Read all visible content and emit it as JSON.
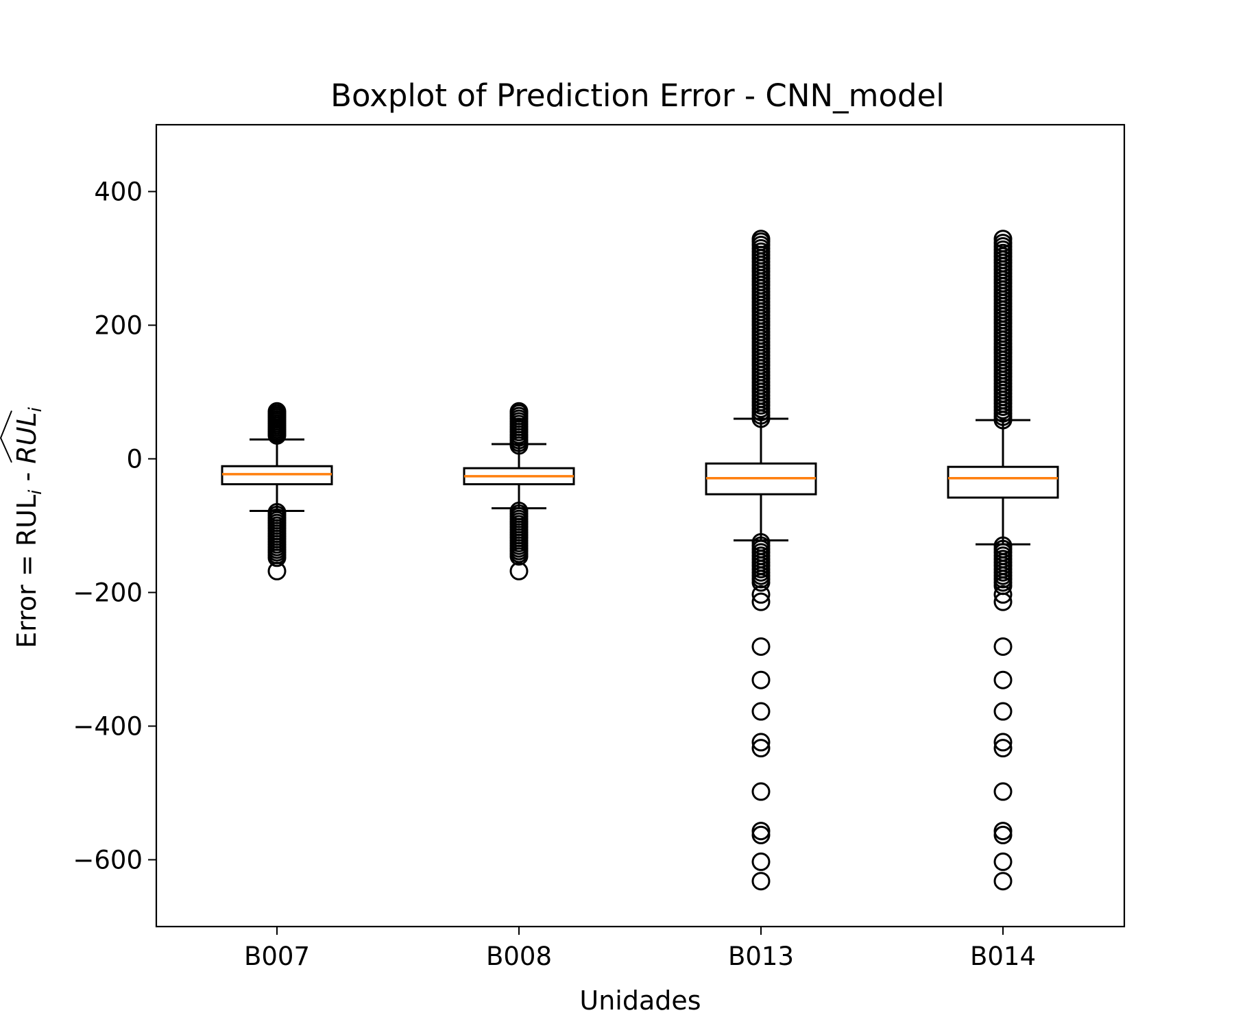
{
  "chart_data": {
    "type": "boxplot",
    "title": "Boxplot of Prediction Error - CNN_model",
    "xlabel": "Unidades",
    "ylabel": {
      "prefix": "Error = RUL",
      "sub1": "i",
      "middle": " - ",
      "hat": "RUL",
      "sub2": "i"
    },
    "ylim": [
      -700,
      500
    ],
    "yticks": [
      400,
      200,
      0,
      -200,
      -400,
      -600
    ],
    "ytick_labels": [
      "400",
      "200",
      "0",
      "−200",
      "−400",
      "−600"
    ],
    "grid": false,
    "colors": {
      "box": "#000000",
      "median": "#ff7f0e",
      "outlier": "#000000"
    },
    "categories": [
      "B007",
      "B008",
      "B013",
      "B014"
    ],
    "boxes": [
      {
        "name": "B007",
        "whislo": -78,
        "q1": -38,
        "med": -23,
        "q3": -11,
        "whishi": 29,
        "fliers_high": [
          35,
          38,
          41,
          44,
          47,
          50,
          53,
          56,
          59,
          62,
          65,
          68,
          71
        ],
        "fliers_low": [
          -80,
          -84,
          -88,
          -92,
          -96,
          -100,
          -104,
          -108,
          -112,
          -116,
          -120,
          -124,
          -128,
          -132,
          -136,
          -140,
          -144,
          -148,
          -168
        ]
      },
      {
        "name": "B008",
        "whislo": -74,
        "q1": -38,
        "med": -26,
        "q3": -14,
        "whishi": 22,
        "fliers_high": [
          20,
          24,
          28,
          32,
          36,
          40,
          44,
          48,
          52,
          56,
          60,
          64,
          68,
          71
        ],
        "fliers_low": [
          -78,
          -82,
          -86,
          -90,
          -94,
          -98,
          -102,
          -106,
          -110,
          -114,
          -118,
          -122,
          -126,
          -130,
          -134,
          -138,
          -142,
          -146,
          -168
        ]
      },
      {
        "name": "B013",
        "whislo": -122,
        "q1": -53,
        "med": -29,
        "q3": -7,
        "whishi": 60,
        "fliers_high": [
          60,
          65,
          70,
          75,
          80,
          85,
          90,
          95,
          100,
          105,
          110,
          115,
          120,
          125,
          130,
          135,
          140,
          145,
          150,
          155,
          160,
          165,
          170,
          175,
          180,
          185,
          190,
          195,
          200,
          205,
          210,
          215,
          220,
          225,
          230,
          235,
          240,
          245,
          250,
          255,
          260,
          265,
          270,
          275,
          280,
          285,
          290,
          295,
          300,
          305,
          310,
          315,
          320,
          325,
          329
        ],
        "fliers_low": [
          -125,
          -130,
          -135,
          -140,
          -145,
          -150,
          -155,
          -160,
          -165,
          -170,
          -175,
          -180,
          -185,
          -203,
          -214,
          -281,
          -331,
          -378,
          -424,
          -433,
          -498,
          -557,
          -563,
          -603,
          -632
        ]
      },
      {
        "name": "B014",
        "whislo": -128,
        "q1": -58,
        "med": -29,
        "q3": -12,
        "whishi": 58,
        "fliers_high": [
          58,
          63,
          68,
          73,
          78,
          83,
          88,
          93,
          98,
          103,
          108,
          113,
          118,
          123,
          128,
          133,
          138,
          143,
          148,
          153,
          158,
          163,
          168,
          173,
          178,
          183,
          188,
          193,
          198,
          203,
          208,
          213,
          218,
          223,
          228,
          233,
          238,
          243,
          248,
          253,
          258,
          263,
          268,
          273,
          278,
          283,
          288,
          293,
          298,
          303,
          308,
          313,
          318,
          323,
          329
        ],
        "fliers_low": [
          -130,
          -135,
          -140,
          -145,
          -150,
          -155,
          -160,
          -165,
          -170,
          -175,
          -180,
          -185,
          -190,
          -203,
          -214,
          -281,
          -331,
          -378,
          -424,
          -433,
          -498,
          -557,
          -563,
          -603,
          -632
        ]
      }
    ]
  }
}
